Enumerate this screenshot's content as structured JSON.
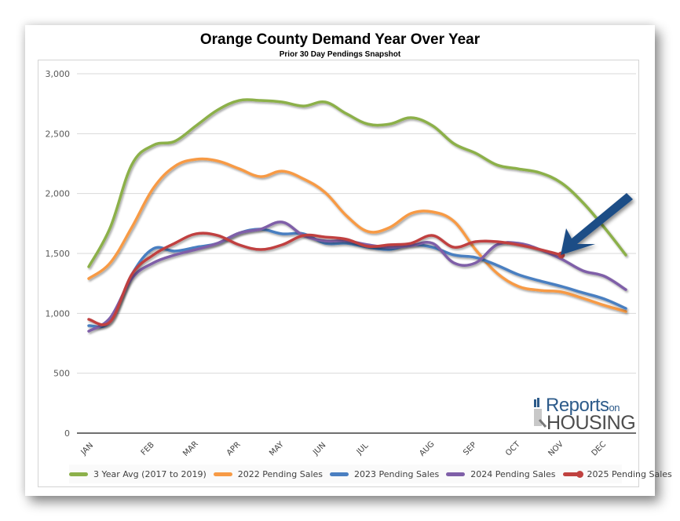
{
  "chart_data": {
    "type": "line",
    "title": "Orange County Demand Year Over Year",
    "subtitle": "Prior 30 Day Pendings Snapshot",
    "xlabel": "",
    "ylabel": "",
    "ylim": [
      0,
      3000
    ],
    "yticks": [
      0,
      500,
      1000,
      1500,
      2000,
      2500,
      3000
    ],
    "ytick_labels": [
      "0",
      "500",
      "1,000",
      "1,500",
      "2,000",
      "2,500",
      "3,000"
    ],
    "grid": true,
    "legend_position": "bottom",
    "x_points": 26,
    "x_tick_labels": [
      {
        "index": 0,
        "label": "JAN"
      },
      {
        "index": 3,
        "label": "FEB"
      },
      {
        "index": 5,
        "label": "MAR"
      },
      {
        "index": 7,
        "label": "APR"
      },
      {
        "index": 9,
        "label": "MAY"
      },
      {
        "index": 11,
        "label": "JUN"
      },
      {
        "index": 13,
        "label": "JUL"
      },
      {
        "index": 16,
        "label": "AUG"
      },
      {
        "index": 18,
        "label": "SEP"
      },
      {
        "index": 20,
        "label": "OCT"
      },
      {
        "index": 22,
        "label": "NOV"
      },
      {
        "index": 24,
        "label": "DEC"
      }
    ],
    "series": [
      {
        "name": "3 Year Avg (2017 to 2019)",
        "color": "#8cb04a",
        "values": [
          1389,
          1716,
          2239,
          2403,
          2436,
          2567,
          2698,
          2777,
          2777,
          2764,
          2731,
          2764,
          2666,
          2580,
          2580,
          2633,
          2567,
          2416,
          2338,
          2239,
          2206,
          2174,
          2089,
          1925,
          1716,
          1487
        ]
      },
      {
        "name": "2022 Pending Sales",
        "color": "#f79a45",
        "values": [
          1290,
          1421,
          1716,
          2043,
          2227,
          2286,
          2272,
          2207,
          2141,
          2187,
          2122,
          2010,
          1814,
          1683,
          1716,
          1834,
          1847,
          1768,
          1533,
          1336,
          1225,
          1192,
          1179,
          1126,
          1067,
          1015
        ]
      },
      {
        "name": "2023 Pending Sales",
        "color": "#4a7fc1",
        "values": [
          897,
          930,
          1323,
          1539,
          1520,
          1552,
          1585,
          1670,
          1703,
          1664,
          1664,
          1585,
          1585,
          1552,
          1533,
          1572,
          1552,
          1487,
          1467,
          1402,
          1323,
          1271,
          1225,
          1172,
          1120,
          1041
        ]
      },
      {
        "name": "2024 Pending Sales",
        "color": "#7f5fa8",
        "values": [
          851,
          963,
          1290,
          1421,
          1487,
          1533,
          1585,
          1670,
          1703,
          1762,
          1650,
          1605,
          1605,
          1572,
          1552,
          1565,
          1585,
          1421,
          1421,
          1572,
          1585,
          1533,
          1454,
          1356,
          1310,
          1198
        ]
      },
      {
        "name": "2025 Pending Sales",
        "color": "#c0413f",
        "values": [
          950,
          930,
          1323,
          1487,
          1585,
          1664,
          1650,
          1572,
          1533,
          1572,
          1650,
          1637,
          1618,
          1559,
          1572,
          1585,
          1650,
          1552,
          1598,
          1598,
          1572,
          1533,
          1487,
          null,
          null,
          null
        ]
      }
    ]
  },
  "annotation": {
    "type": "arrow",
    "color": "#1f4e86",
    "points_to": "2025 Pending Sales latest value (NOV)"
  },
  "logo": {
    "line1": "Reports",
    "line1_suffix": "on",
    "line2": "HOUSING"
  }
}
